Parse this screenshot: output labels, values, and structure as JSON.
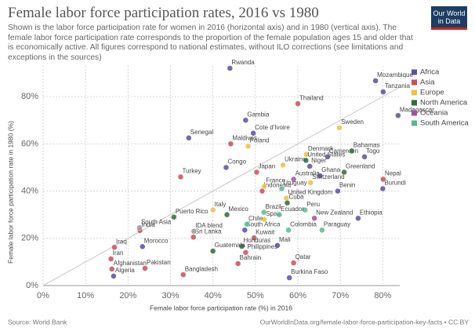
{
  "chart_data": {
    "type": "scatter",
    "title": "Female labor force participation rates, 2016 vs 1980",
    "subtitle": "Shown is the labor force participation rate for women in 2016 (horizontal axis) and in 1980 (vertical axis). The female labor force participation rate corresponds to the proportion of the female population ages 15 and older that is economically active. All figures correspond to national estimates, without ILO corrections (see limitations and exceptions in the sources)",
    "logo": "Our World in Data",
    "x_label": "Female labor force participation rate (%) in 2016",
    "y_label": "Female labor force participation rate in 1980 (%)",
    "source": "Source: World Bank",
    "url": "OurWorldInData.org/female-labor-force-participation-key-facts • CC BY",
    "xlim": [
      0,
      84
    ],
    "ylim": [
      0,
      93
    ],
    "xticks": [
      {
        "value": 0,
        "label": "0%"
      },
      {
        "value": 10,
        "label": "10%"
      },
      {
        "value": 20,
        "label": "20%"
      },
      {
        "value": 30,
        "label": "30%"
      },
      {
        "value": 40,
        "label": "40%"
      },
      {
        "value": 50,
        "label": "50%"
      },
      {
        "value": 60,
        "label": "60%"
      },
      {
        "value": 70,
        "label": "70%"
      },
      {
        "value": 80,
        "label": "80%"
      }
    ],
    "yticks": [
      {
        "value": 0,
        "label": "0%"
      },
      {
        "value": 20,
        "label": "20%"
      },
      {
        "value": 40,
        "label": "40%"
      },
      {
        "value": 60,
        "label": "60%"
      },
      {
        "value": 80,
        "label": "80%"
      }
    ],
    "grid": true,
    "legend": "top-right",
    "series": [
      {
        "name": "Africa",
        "color": "#5a4f9e",
        "labels": [
          "Rwanda",
          "Mozambique",
          "Tanzania",
          "Madagascar",
          "Gambia",
          "Senegal",
          "Cote d'Ivoire",
          "Cameroon",
          "Togo",
          "Niger",
          "Congo",
          "Ghana",
          "Burundi",
          "Benin",
          "Ethiopia",
          "South Africa",
          "Mali",
          "Morocco",
          "Algeria",
          "Burkina Faso"
        ],
        "x": [
          44.0,
          78.3,
          80.1,
          83.6,
          47.7,
          34.3,
          49.5,
          67.0,
          75.7,
          62.8,
          43.1,
          65.2,
          80.0,
          69.4,
          74.2,
          47.5,
          55.2,
          23.4,
          16.6,
          58.0
        ],
        "values": [
          92.0,
          86.7,
          82.0,
          72.0,
          70.0,
          62.5,
          64.5,
          54.5,
          54.5,
          50.5,
          50.0,
          46.5,
          41.0,
          40.0,
          28.5,
          23.5,
          17.0,
          16.5,
          4.0,
          3.3
        ]
      },
      {
        "name": "Asia",
        "color": "#c74f5c",
        "labels": [
          "Thailand",
          "Maldives",
          "Turkey",
          "Japan",
          "Nepal",
          "Indonesia",
          "India",
          "Iraq",
          "Iran",
          "Afghanistan",
          "Pakistan",
          "Kuwait",
          "Philippines",
          "Bahrain",
          "Qatar",
          "Bangladesh",
          "Sri Lanka"
        ],
        "x": [
          60.0,
          44.2,
          32.4,
          50.3,
          80.1,
          51.6,
          22.8,
          16.8,
          16.0,
          16.2,
          24.0,
          49.7,
          47.7,
          45.9,
          59.0,
          33.0,
          35.4
        ],
        "values": [
          77.0,
          60.0,
          46.0,
          48.0,
          45.0,
          40.0,
          23.3,
          16.2,
          11.3,
          7.0,
          7.3,
          20.2,
          14.0,
          9.3,
          9.6,
          4.6,
          20.5
        ]
      },
      {
        "name": "Europe",
        "color": "#e9c340",
        "labels": [
          "Sweden",
          "Poland",
          "Denmark",
          "Ukraine",
          "Switzerland",
          "France",
          "United Kingdom",
          "Italy",
          "Spain"
        ],
        "x": [
          69.8,
          48.3,
          62.0,
          56.5,
          63.0,
          52.1,
          57.3,
          40.0,
          52.1
        ],
        "values": [
          66.8,
          59.0,
          55.5,
          51.0,
          43.5,
          42.0,
          37.0,
          32.0,
          28.0
        ]
      },
      {
        "name": "North America",
        "color": "#2e6b3d",
        "labels": [
          "Bahamas",
          "United States",
          "Greenland",
          "Puerto Rico",
          "Mexico",
          "Cuba",
          "Honduras",
          "Guatemala"
        ],
        "x": [
          72.7,
          61.9,
          70.9,
          30.8,
          43.3,
          57.5,
          46.8,
          40.0
        ],
        "values": [
          57.0,
          53.0,
          48.0,
          29.0,
          30.0,
          35.0,
          16.6,
          14.6
        ]
      },
      {
        "name": "Oceania",
        "color": "#a0519b",
        "labels": [
          "Australia",
          "New Zealand"
        ],
        "x": [
          59.0,
          63.9
        ],
        "values": [
          45.0,
          28.5
        ]
      },
      {
        "name": "South America",
        "color": "#5ab88f",
        "labels": [
          "Uruguay",
          "Brazil",
          "Peru",
          "Ecuador",
          "Chile",
          "Colombia",
          "Paraguay"
        ],
        "x": [
          56.2,
          52.0,
          61.7,
          55.6,
          48.0,
          57.8,
          65.7
        ],
        "values": [
          41.0,
          31.0,
          32.0,
          30.0,
          26.0,
          23.5,
          23.5
        ]
      },
      {
        "color": "#999999",
        "labels": [
          "South Asia",
          "IDA blend"
        ],
        "x": [
          22.7,
          35.5
        ],
        "values": [
          24.5,
          23.0
        ]
      }
    ]
  }
}
